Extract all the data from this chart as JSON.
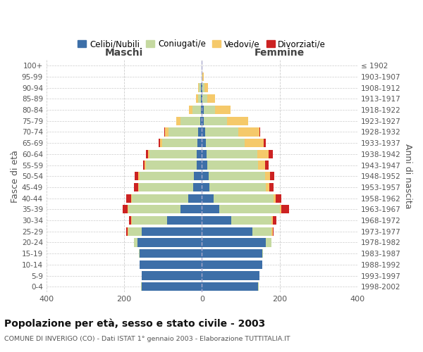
{
  "age_groups": [
    "0-4",
    "5-9",
    "10-14",
    "15-19",
    "20-24",
    "25-29",
    "30-34",
    "35-39",
    "40-44",
    "45-49",
    "50-54",
    "55-59",
    "60-64",
    "65-69",
    "70-74",
    "75-79",
    "80-84",
    "85-89",
    "90-94",
    "95-99",
    "100+"
  ],
  "birth_years": [
    "1998-2002",
    "1993-1997",
    "1988-1992",
    "1983-1987",
    "1978-1982",
    "1973-1977",
    "1968-1972",
    "1963-1967",
    "1958-1962",
    "1953-1957",
    "1948-1952",
    "1943-1947",
    "1938-1942",
    "1933-1937",
    "1928-1932",
    "1923-1927",
    "1918-1922",
    "1913-1917",
    "1908-1912",
    "1903-1907",
    "≤ 1902"
  ],
  "males": {
    "celibi": [
      155,
      155,
      160,
      160,
      165,
      155,
      90,
      55,
      35,
      22,
      20,
      14,
      14,
      12,
      10,
      5,
      3,
      2,
      2,
      0,
      0
    ],
    "coniugati": [
      2,
      0,
      1,
      2,
      10,
      35,
      90,
      135,
      145,
      140,
      140,
      130,
      120,
      90,
      75,
      50,
      22,
      8,
      5,
      1,
      0
    ],
    "vedovi": [
      0,
      0,
      0,
      0,
      0,
      2,
      2,
      2,
      2,
      2,
      3,
      3,
      5,
      5,
      10,
      10,
      8,
      5,
      3,
      0,
      0
    ],
    "divorziati": [
      0,
      0,
      0,
      0,
      0,
      2,
      5,
      12,
      12,
      10,
      10,
      5,
      5,
      5,
      2,
      0,
      0,
      0,
      0,
      0,
      0
    ]
  },
  "females": {
    "nubili": [
      145,
      148,
      155,
      155,
      165,
      130,
      75,
      45,
      30,
      20,
      18,
      14,
      12,
      10,
      8,
      5,
      4,
      2,
      2,
      0,
      0
    ],
    "coniugate": [
      2,
      0,
      1,
      2,
      15,
      50,
      105,
      155,
      155,
      145,
      145,
      130,
      130,
      100,
      85,
      60,
      30,
      12,
      5,
      2,
      0
    ],
    "vedove": [
      0,
      0,
      0,
      0,
      0,
      2,
      2,
      5,
      5,
      8,
      12,
      18,
      30,
      50,
      55,
      55,
      40,
      20,
      8,
      2,
      0
    ],
    "divorziate": [
      0,
      0,
      0,
      0,
      0,
      2,
      10,
      20,
      15,
      12,
      12,
      10,
      10,
      5,
      2,
      0,
      0,
      0,
      0,
      0,
      0
    ]
  },
  "colors": {
    "celibi": "#3d6fa8",
    "coniugati": "#c5d9a0",
    "vedovi": "#f5c96a",
    "divorziati": "#cc2222"
  },
  "xlim": 400,
  "title": "Popolazione per età, sesso e stato civile - 2003",
  "subtitle": "COMUNE DI INVERIGO (CO) - Dati ISTAT 1° gennaio 2003 - Elaborazione TUTTITALIA.IT",
  "ylabel_left": "Fasce di età",
  "ylabel_right": "Anni di nascita",
  "xlabel_left": "Maschi",
  "xlabel_right": "Femmine",
  "legend_labels": [
    "Celibi/Nubili",
    "Coniugati/e",
    "Vedovi/e",
    "Divorziati/e"
  ],
  "background_color": "#ffffff",
  "grid_color": "#cccccc",
  "figsize": [
    6.0,
    5.0
  ],
  "dpi": 100
}
